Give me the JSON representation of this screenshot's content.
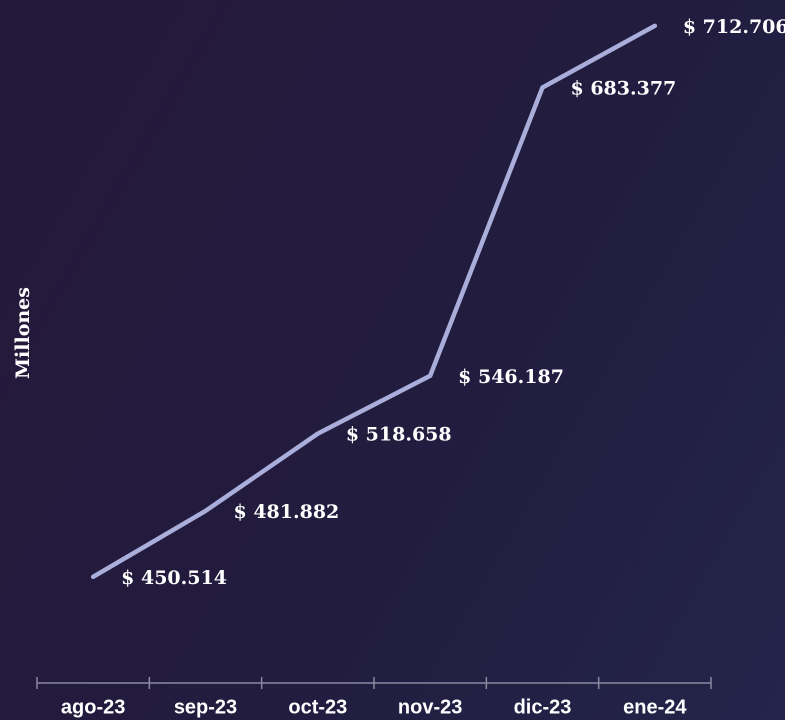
{
  "chart_data": {
    "type": "line",
    "y_label": "Millones",
    "categories": [
      "ago-23",
      "sep-23",
      "oct-23",
      "nov-23",
      "dic-23",
      "ene-24"
    ],
    "series": [
      {
        "color": "#aaaedb",
        "values": [
          450514,
          481882,
          518658,
          546187,
          683377,
          712706
        ],
        "value_labels": [
          "$ 450.514",
          "$ 481.882",
          "$ 518.658",
          "$ 546.187",
          "$ 683.377",
          "$ 712.706"
        ]
      }
    ],
    "ylim": [
      400000,
      725000
    ]
  }
}
